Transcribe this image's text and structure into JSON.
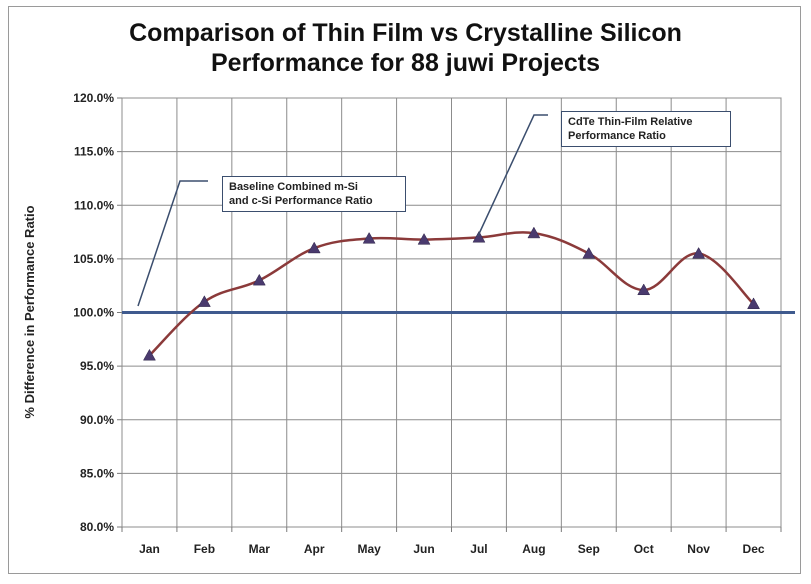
{
  "chart_data": {
    "type": "line",
    "title": "Comparison of Thin Film vs Crystalline Silicon Performance for 88 juwi Projects",
    "title_lines": [
      "Comparison of Thin Film vs Crystalline Silicon",
      "Performance for 88 juwi Projects"
    ],
    "xlabel": "",
    "ylabel": "% Difference in Performance Ratio",
    "categories": [
      "Jan",
      "Feb",
      "Mar",
      "Apr",
      "May",
      "Jun",
      "Jul",
      "Aug",
      "Sep",
      "Oct",
      "Nov",
      "Dec"
    ],
    "ylim": [
      80,
      120
    ],
    "yticks": [
      "80.0%",
      "85.0%",
      "90.0%",
      "95.0%",
      "100.0%",
      "105.0%",
      "110.0%",
      "115.0%",
      "120.0%"
    ],
    "grid": true,
    "series": [
      {
        "name": "CdTe Thin-Film Relative Performance Ratio",
        "values": [
          96.0,
          101.0,
          103.0,
          106.0,
          106.9,
          106.8,
          107.0,
          107.4,
          105.5,
          102.1,
          105.5,
          100.8
        ],
        "color": "#8b3a3a",
        "marker_color": "#4a3a6e"
      }
    ],
    "baseline": {
      "name": "Baseline Combined m-Si and c-Si Performance Ratio",
      "value": 100.0,
      "color": "#3f5a8e"
    },
    "annotations": [
      {
        "lines": [
          "Baseline Combined m-Si",
          "and c-Si Performance Ratio"
        ]
      },
      {
        "lines": [
          "CdTe Thin-Film Relative",
          "Performance Ratio"
        ]
      }
    ]
  }
}
